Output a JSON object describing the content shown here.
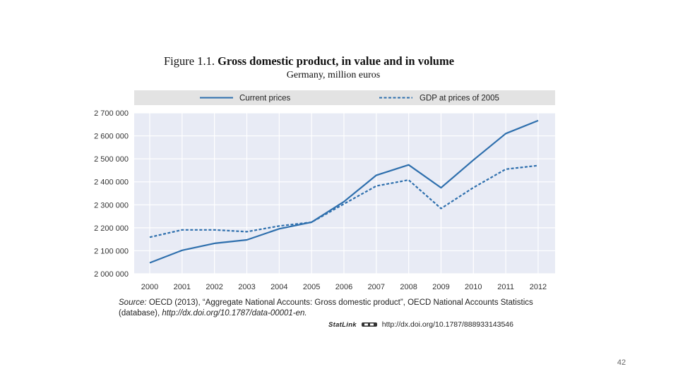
{
  "figure": {
    "label": "Figure 1.1.",
    "title": "Gross domestic product, in value and in volume",
    "subtitle": "Germany, million euros"
  },
  "chart_data": {
    "type": "line",
    "title": "Gross domestic product, in value and in volume",
    "subtitle": "Germany, million euros",
    "xlabel": "",
    "ylabel": "",
    "categories": [
      "2000",
      "2001",
      "2002",
      "2003",
      "2004",
      "2005",
      "2006",
      "2007",
      "2008",
      "2009",
      "2010",
      "2011",
      "2012"
    ],
    "ylim": [
      2000000,
      2700000
    ],
    "yticks": [
      2000000,
      2100000,
      2200000,
      2300000,
      2400000,
      2500000,
      2600000,
      2700000
    ],
    "ytick_labels": [
      "2 000 000",
      "2 100 000",
      "2 200 000",
      "2 300 000",
      "2 400 000",
      "2 500 000",
      "2 600 000",
      "2 700 000"
    ],
    "grid": true,
    "legend_position": "top",
    "series": [
      {
        "name": "Current prices",
        "style": "solid",
        "color": "#2e6fad",
        "values": [
          2047500,
          2101900,
          2132200,
          2147500,
          2195700,
          2224400,
          2313900,
          2428500,
          2473800,
          2374200,
          2495000,
          2609900,
          2666400
        ]
      },
      {
        "name": "GDP at prices of 2005",
        "style": "dashed",
        "color": "#2e6fad",
        "values": [
          2159000,
          2191000,
          2191000,
          2183000,
          2208000,
          2224000,
          2304000,
          2382000,
          2408000,
          2284000,
          2375000,
          2455000,
          2471000
        ]
      }
    ]
  },
  "source": {
    "label": "Source:",
    "text": "OECD (2013), “Aggregate National Accounts: Gross domestic product”, OECD National Accounts Statistics (database),",
    "url": "http://dx.doi.org/10.1787/data-00001-en."
  },
  "statlink": {
    "brand": "StatLink",
    "url": "http://dx.doi.org/10.1787/888933143546"
  },
  "page_number": "42",
  "colors": {
    "plot_bg": "#e8ebf5",
    "legend_bg": "#e3e3e3",
    "line": "#2e6fad"
  }
}
